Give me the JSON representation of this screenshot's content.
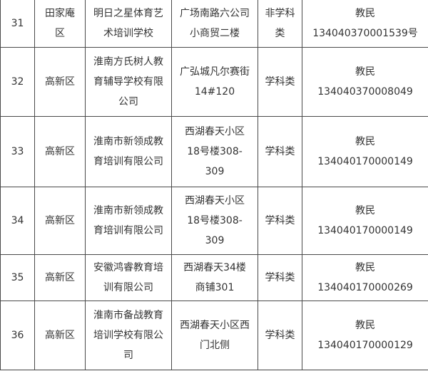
{
  "rows": [
    {
      "no": "31",
      "district": [
        "田家庵",
        "区"
      ],
      "name": [
        "明日之星体育艺",
        "术培训学校"
      ],
      "address": [
        "广场南路六公司",
        "小商贸二楼"
      ],
      "type": [
        "非学科",
        "类"
      ],
      "license": [
        "教民",
        "134040370001539号"
      ]
    },
    {
      "no": "32",
      "district": [
        "高新区"
      ],
      "name": [
        "淮南方氏树人教",
        "育辅导学校有限",
        "公司"
      ],
      "address": [
        "广弘城凡尔赛街",
        "14#120"
      ],
      "type": [
        "学科类"
      ],
      "license": [
        "教民",
        "134040370008049"
      ]
    },
    {
      "no": "33",
      "district": [
        "高新区"
      ],
      "name": [
        "淮南市新领成教",
        "育培训有限公司"
      ],
      "address": [
        "西湖春天小区",
        "18号楼308-",
        "309"
      ],
      "type": [
        "学科类"
      ],
      "license": [
        "教民",
        "134040170000149"
      ]
    },
    {
      "no": "34",
      "district": [
        "高新区"
      ],
      "name": [
        "淮南市新领成教",
        "育培训有限公司"
      ],
      "address": [
        "西湖春天小区",
        "18号楼308-",
        "309"
      ],
      "type": [
        "学科类"
      ],
      "license": [
        "教民",
        "134040170000149"
      ]
    },
    {
      "no": "35",
      "district": [
        "高新区"
      ],
      "name": [
        "安徽鸿睿教育培",
        "训有限公司"
      ],
      "address": [
        "西湖春天34楼",
        "商铺301"
      ],
      "type": [
        "学科类"
      ],
      "license": [
        "教民",
        "134040170000269"
      ]
    },
    {
      "no": "36",
      "district": [
        "高新区"
      ],
      "name": [
        "淮南市备战教育",
        "培训学校有限公",
        "司"
      ],
      "address": [
        "西湖春天小区西",
        "门北侧"
      ],
      "type": [
        "学科类"
      ],
      "license": [
        "教民",
        "134040170000129"
      ]
    }
  ]
}
